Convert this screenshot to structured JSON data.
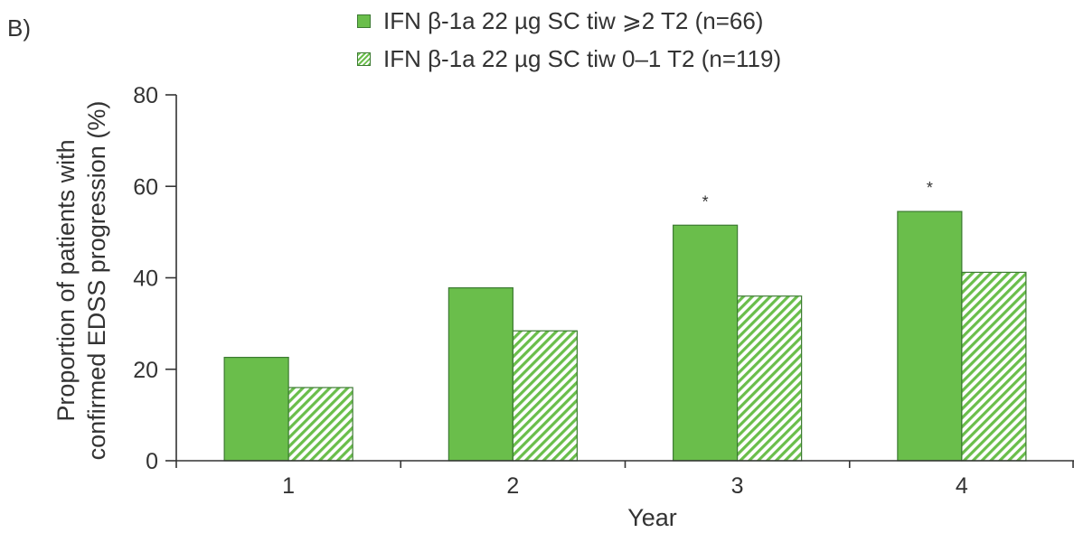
{
  "panel_label": "B)",
  "colors": {
    "bar": "#6abe4b",
    "bar_stroke": "#3c7a32",
    "axis": "#333333",
    "hatch_bg": "#ffffff"
  },
  "chart_data": {
    "type": "bar",
    "categories": [
      "1",
      "2",
      "3",
      "4"
    ],
    "series": [
      {
        "name": "IFN β-1a 22 µg SC tiw ⩾2 T2 (n=66)",
        "pattern": "solid",
        "values": [
          22.6,
          37.8,
          51.5,
          54.5
        ]
      },
      {
        "name": "IFN β-1a 22 µg SC tiw 0–1 T2 (n=119)",
        "pattern": "hatched",
        "values": [
          16.0,
          28.4,
          36.0,
          41.2
        ]
      }
    ],
    "annotations": [
      {
        "category": "3",
        "text": "*"
      },
      {
        "category": "4",
        "text": "*"
      }
    ],
    "xlabel": "Year",
    "ylabel_lines": [
      "Proportion of patients with",
      "confirmed EDSS progression (%)"
    ],
    "ylim": [
      0,
      80
    ],
    "yticks": [
      "0",
      "20",
      "40",
      "60",
      "80"
    ],
    "grid": false,
    "legend_position": "top"
  }
}
